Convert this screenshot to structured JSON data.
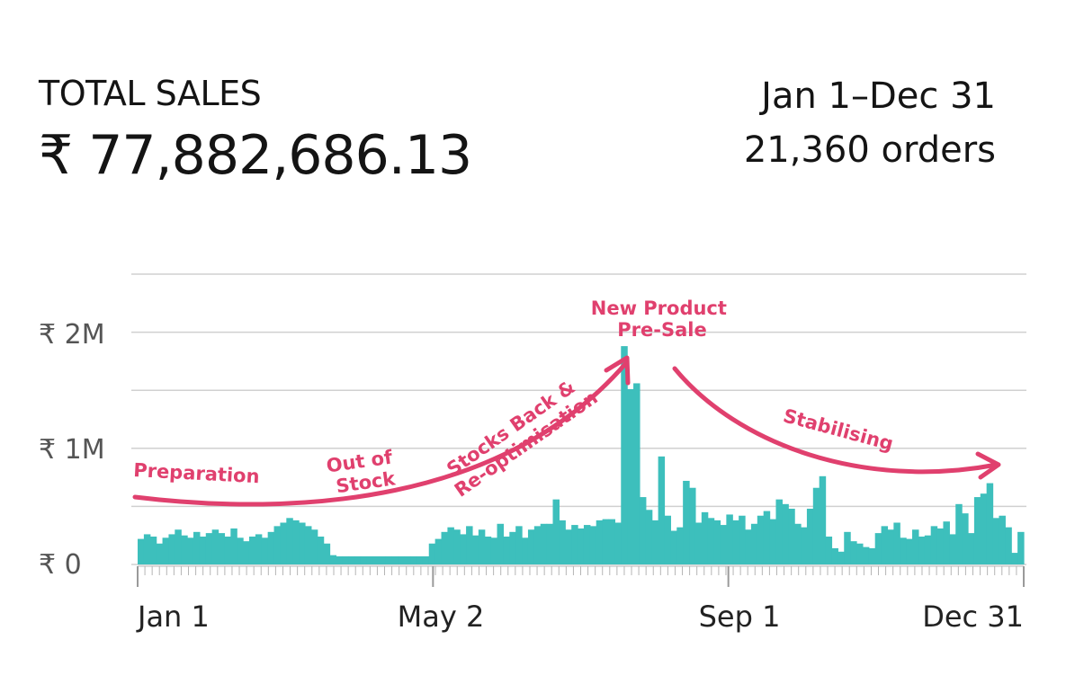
{
  "header": {
    "title": "TOTAL SALES",
    "total": "₹ 77,882,686.13",
    "date_range": "Jan 1–Dec 31",
    "orders": "21,360 orders"
  },
  "colors": {
    "bars": "#3dbfbc",
    "annotation": "#e0406e",
    "grid": "#d0d0d0"
  },
  "chart_data": {
    "type": "bar",
    "x_tick_labels": [
      "Jan 1",
      "May 2",
      "Sep 1",
      "Dec 31"
    ],
    "y_tick_labels": [
      "₹ 0",
      "₹ 1M",
      "₹ 2M"
    ],
    "ylim": [
      0,
      2500000
    ],
    "grid": true,
    "series": [
      {
        "values": [
          220000,
          260000,
          240000,
          180000,
          230000,
          260000,
          300000,
          250000,
          230000,
          280000,
          240000,
          270000,
          300000,
          270000,
          240000,
          310000,
          230000,
          200000,
          240000,
          260000,
          230000,
          280000,
          330000,
          360000,
          400000,
          380000,
          360000,
          330000,
          300000,
          240000,
          180000,
          80000,
          70000,
          70000,
          70000,
          70000,
          70000,
          70000,
          70000,
          70000,
          70000,
          70000,
          70000,
          70000,
          70000,
          70000,
          70000,
          180000,
          220000,
          280000,
          320000,
          300000,
          260000,
          330000,
          250000,
          300000,
          240000,
          230000,
          350000,
          240000,
          280000,
          330000,
          230000,
          300000,
          330000,
          350000,
          350000,
          560000,
          380000,
          300000,
          340000,
          310000,
          340000,
          330000,
          380000,
          390000,
          390000,
          360000,
          1880000,
          1510000,
          1560000,
          580000,
          470000,
          380000,
          930000,
          420000,
          290000,
          320000,
          720000,
          660000,
          360000,
          450000,
          400000,
          380000,
          340000,
          430000,
          380000,
          420000,
          300000,
          350000,
          420000,
          460000,
          390000,
          560000,
          520000,
          480000,
          350000,
          320000,
          480000,
          660000,
          760000,
          240000,
          140000,
          110000,
          280000,
          200000,
          180000,
          150000,
          140000,
          270000,
          330000,
          300000,
          360000,
          230000,
          220000,
          300000,
          240000,
          250000,
          330000,
          310000,
          370000,
          260000,
          520000,
          440000,
          270000,
          580000,
          610000,
          700000,
          400000,
          420000,
          320000,
          100000,
          280000
        ],
        "note": "Approximate daily sales read from bars, Jan 1 to Dec 31"
      }
    ],
    "annotations": [
      "Preparation",
      "Out of Stock",
      "Stocks Back & Re-optimisation",
      "New Product Pre-Sale",
      "Stabilising"
    ]
  }
}
